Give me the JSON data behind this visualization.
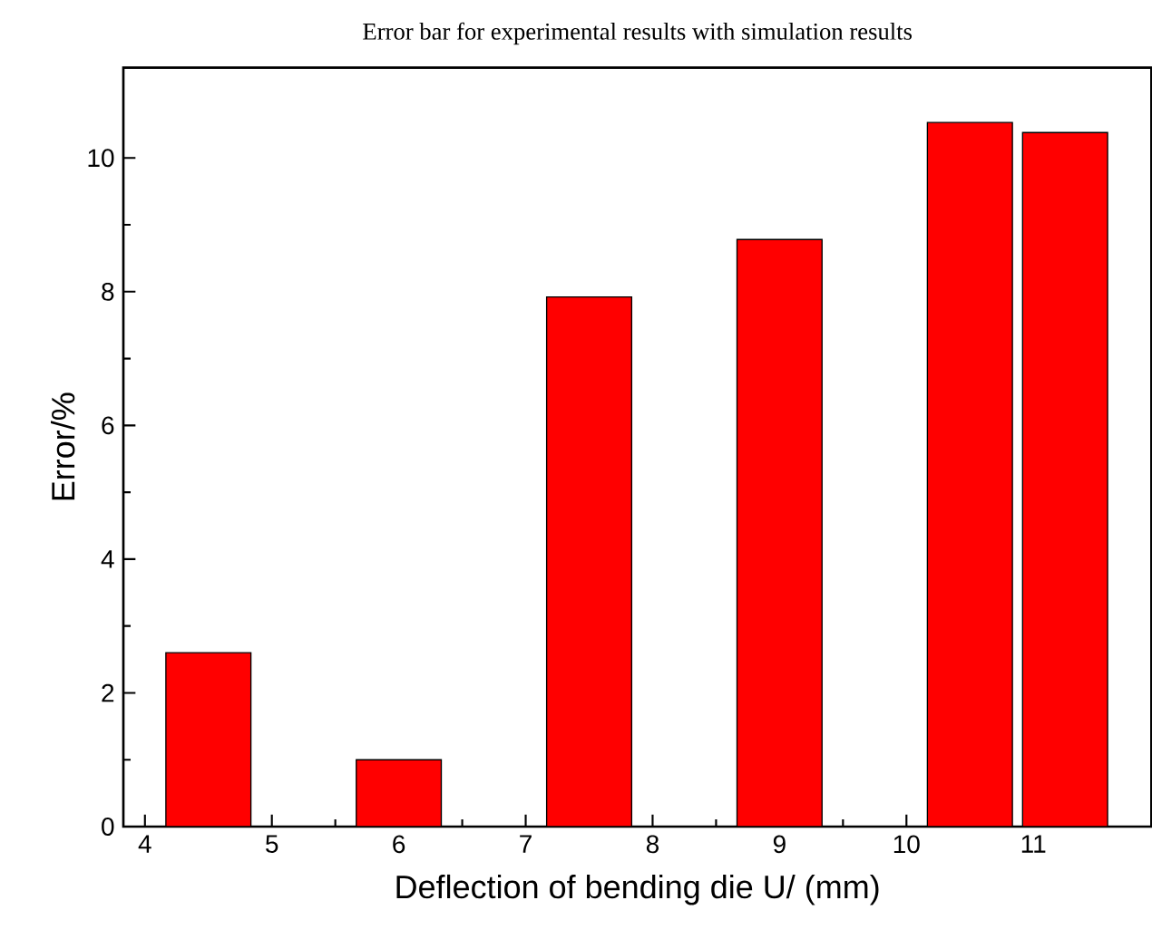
{
  "chart_data": {
    "type": "bar",
    "title": "Error bar for experimental results with simulation results",
    "xlabel": "Deflection of bending die U/ (mm)",
    "ylabel": "Error/%",
    "x": [
      4.5,
      6,
      7.5,
      9,
      10.5,
      11.25
    ],
    "values": [
      2.6,
      1.0,
      7.92,
      8.78,
      10.53,
      10.38
    ],
    "color": "#ff0000",
    "xlim": [
      3.83,
      11.93
    ],
    "xticks": [
      4,
      5,
      6,
      7,
      8,
      9,
      10,
      11
    ],
    "ylim": [
      0,
      11.35
    ],
    "yticks": [
      0,
      2,
      4,
      6,
      8,
      10
    ],
    "grid": false
  }
}
